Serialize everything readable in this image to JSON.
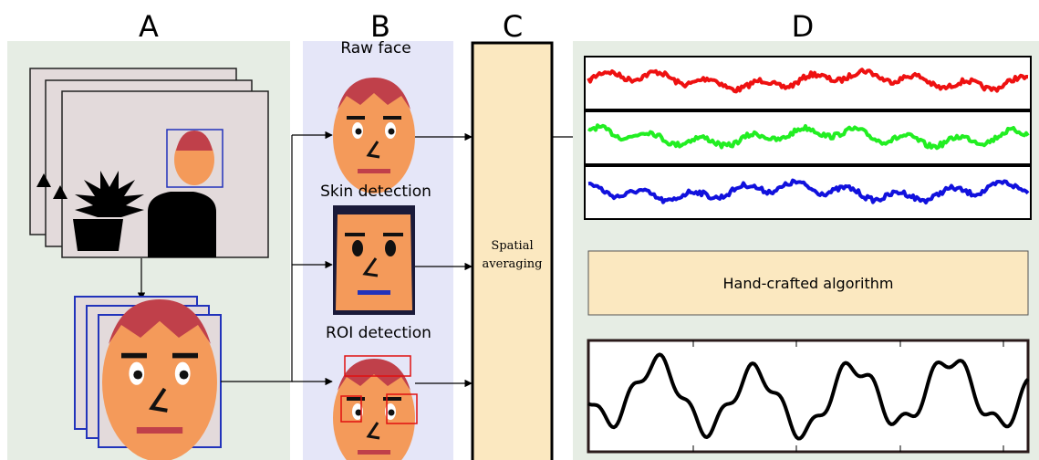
{
  "panels": {
    "a": {
      "label": "A"
    },
    "b": {
      "label": "B",
      "steps": [
        "Raw face",
        "Skin detection",
        "ROI detection"
      ]
    },
    "c": {
      "label": "C",
      "text": "Spatial averaging"
    },
    "d": {
      "label": "D",
      "algorithm": "Hand-crafted algorithm"
    }
  }
}
